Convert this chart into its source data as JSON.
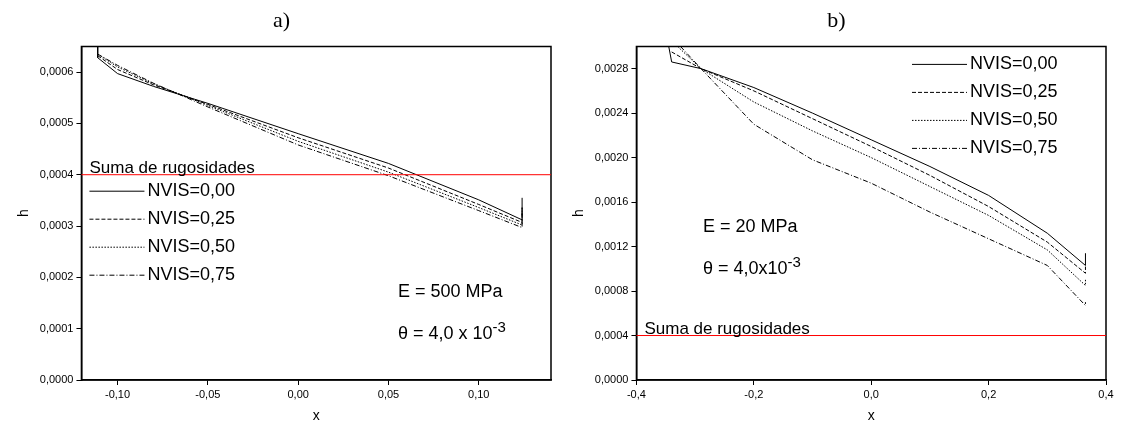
{
  "chart_data": [
    {
      "type": "line",
      "title": "a)",
      "xlabel": "x",
      "ylabel": "h",
      "xlim": [
        -0.12,
        0.14
      ],
      "ylim": [
        0,
        0.00065
      ],
      "xticks": [
        {
          "value": -0.1,
          "label": "-0,10"
        },
        {
          "value": -0.05,
          "label": "-0,05"
        },
        {
          "value": 0,
          "label": "0,00"
        },
        {
          "value": 0.05,
          "label": "0,05"
        },
        {
          "value": 0.1,
          "label": "0,10"
        }
      ],
      "yticks": [
        {
          "value": 0,
          "label": "0,0000"
        },
        {
          "value": 0.0001,
          "label": "0,0001"
        },
        {
          "value": 0.0002,
          "label": "0,0002"
        },
        {
          "value": 0.0003,
          "label": "0,0003"
        },
        {
          "value": 0.0004,
          "label": "0,0004"
        },
        {
          "value": 0.0005,
          "label": "0,0005"
        },
        {
          "value": 0.0006,
          "label": "0,0006"
        }
      ],
      "grid": false,
      "legend": "center left",
      "marker": "none",
      "series": [
        {
          "name": "NVIS=0,00",
          "color": "#000000",
          "line_style": "solid",
          "x": [
            -0.111,
            -0.111,
            -0.1,
            -0.08,
            -0.05,
            0,
            0.05,
            0.1,
            0.124,
            0.124
          ],
          "values": [
            0.00065,
            0.000628,
            0.000597,
            0.000572,
            0.000539,
            0.00048,
            0.000422,
            0.000351,
            0.000312,
            0.000355
          ]
        },
        {
          "name": "NVIS=0,25",
          "color": "#000000",
          "line_style": "dashed",
          "x": [
            -0.111,
            -0.1,
            -0.08,
            -0.05,
            0,
            0.05,
            0.1,
            0.124,
            0.124
          ],
          "values": [
            0.000632,
            0.000605,
            0.000575,
            0.000537,
            0.000472,
            0.000413,
            0.000342,
            0.000307,
            0.00034
          ]
        },
        {
          "name": "NVIS=0,50",
          "color": "#000000",
          "line_style": "dotted",
          "x": [
            -0.111,
            -0.1,
            -0.08,
            -0.05,
            0,
            0.05,
            0.1,
            0.124,
            0.124
          ],
          "values": [
            0.000635,
            0.00061,
            0.000577,
            0.000535,
            0.000465,
            0.000405,
            0.000336,
            0.000302,
            0.000335
          ]
        },
        {
          "name": "NVIS=0,75",
          "color": "#000000",
          "line_style": "dashdot",
          "x": [
            -0.111,
            -0.1,
            -0.08,
            -0.05,
            0,
            0.05,
            0.1,
            0.124,
            0.124
          ],
          "values": [
            0.000635,
            0.000613,
            0.000578,
            0.000532,
            0.000458,
            0.000398,
            0.00033,
            0.000297,
            0.00033
          ]
        }
      ],
      "ref_lines": [
        {
          "axis": "y",
          "value": 0.0004,
          "label": "Suma de rugosidades",
          "color": "#ff0000"
        }
      ],
      "annotations": [
        "E = 500 MPa",
        "θ = 4,0 x 10$^{-3}$"
      ]
    },
    {
      "type": "line",
      "title": "b)",
      "xlabel": "x",
      "ylabel": "h",
      "xlim": [
        -0.4,
        0.4
      ],
      "ylim": [
        0,
        0.003
      ],
      "xticks": [
        {
          "value": -0.4,
          "label": "-0,4"
        },
        {
          "value": -0.2,
          "label": "-0,2"
        },
        {
          "value": 0,
          "label": "0,0"
        },
        {
          "value": 0.2,
          "label": "0,2"
        },
        {
          "value": 0.4,
          "label": "0,4"
        }
      ],
      "yticks": [
        {
          "value": 0,
          "label": "0,0000"
        },
        {
          "value": 0.0004,
          "label": "0,0004"
        },
        {
          "value": 0.0008,
          "label": "0,0008"
        },
        {
          "value": 0.0012,
          "label": "0,0012"
        },
        {
          "value": 0.0016,
          "label": "0,0016"
        },
        {
          "value": 0.002,
          "label": "0,0020"
        },
        {
          "value": 0.0024,
          "label": "0,0024"
        },
        {
          "value": 0.0028,
          "label": "0,0028"
        }
      ],
      "grid": false,
      "legend": "top right",
      "marker": "none",
      "series": [
        {
          "name": "NVIS=0,00",
          "color": "#000000",
          "line_style": "solid",
          "x": [
            -0.345,
            -0.34,
            -0.29,
            -0.2,
            -0.1,
            0,
            0.1,
            0.2,
            0.3,
            0.365,
            0.365
          ],
          "values": [
            0.003,
            0.00286,
            0.0028,
            0.00263,
            0.0024,
            0.00216,
            0.00192,
            0.00166,
            0.00132,
            0.00103,
            0.00114
          ]
        },
        {
          "name": "NVIS=0,25",
          "color": "#000000",
          "line_style": "dashed",
          "x": [
            -0.34,
            -0.29,
            -0.2,
            -0.1,
            0,
            0.1,
            0.2,
            0.3,
            0.365,
            0.365
          ],
          "values": [
            0.00295,
            0.0028,
            0.0026,
            0.00235,
            0.0021,
            0.00184,
            0.00156,
            0.00124,
            0.00096,
            0.00102
          ]
        },
        {
          "name": "NVIS=0,50",
          "color": "#000000",
          "line_style": "dotted",
          "x": [
            -0.33,
            -0.29,
            -0.2,
            -0.1,
            0,
            0.1,
            0.2,
            0.3,
            0.365,
            0.365
          ],
          "values": [
            0.003,
            0.0028,
            0.0025,
            0.00224,
            0.002,
            0.00174,
            0.00148,
            0.00117,
            0.00085,
            0.00091
          ]
        },
        {
          "name": "NVIS=0,75",
          "color": "#000000",
          "line_style": "dashdot",
          "x": [
            -0.325,
            -0.29,
            -0.2,
            -0.1,
            0,
            0.1,
            0.2,
            0.3,
            0.365,
            0.365
          ],
          "values": [
            0.003,
            0.0028,
            0.0023,
            0.00198,
            0.00177,
            0.00151,
            0.00127,
            0.00103,
            0.00067,
            0.0007
          ]
        }
      ],
      "ref_lines": [
        {
          "axis": "y",
          "value": 0.0004,
          "label": "Suma de rugosidades",
          "color": "#ff0000"
        }
      ],
      "annotations": [
        "E = 20 MPa",
        "θ = 4,0x10$^{-3}$"
      ]
    }
  ]
}
